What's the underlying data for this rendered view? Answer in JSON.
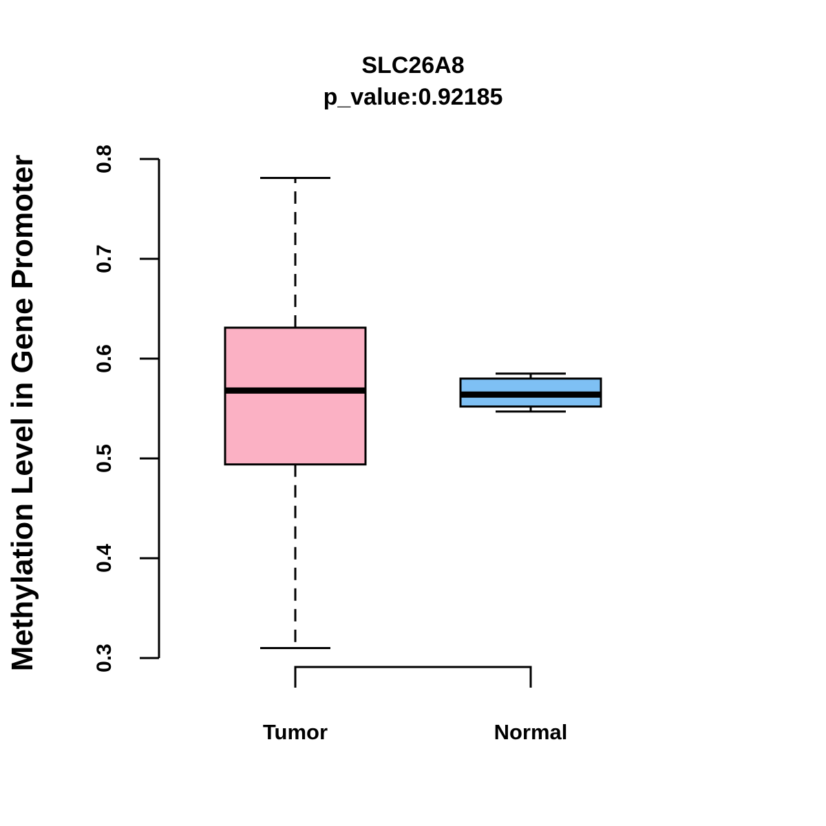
{
  "chart_data": {
    "type": "box",
    "title": "SLC26A8",
    "subtitle": "p_value:0.92185",
    "xlabel": "",
    "ylabel": "Methylation Level in Gene Promoter",
    "ylim": [
      0.3,
      0.8
    ],
    "yticks": [
      "0.3",
      "0.4",
      "0.5",
      "0.6",
      "0.7",
      "0.8"
    ],
    "categories": [
      "Tumor",
      "Normal"
    ],
    "boxes": [
      {
        "name": "Tumor",
        "whisker_low": 0.31,
        "q1": 0.494,
        "median": 0.568,
        "q3": 0.631,
        "whisker_high": 0.781,
        "color": "#FBB1C4"
      },
      {
        "name": "Normal",
        "whisker_low": 0.547,
        "q1": 0.552,
        "median": 0.564,
        "q3": 0.58,
        "whisker_high": 0.585,
        "color": "#7EC0F4"
      }
    ],
    "comparison_bracket": [
      "Tumor",
      "Normal"
    ]
  }
}
